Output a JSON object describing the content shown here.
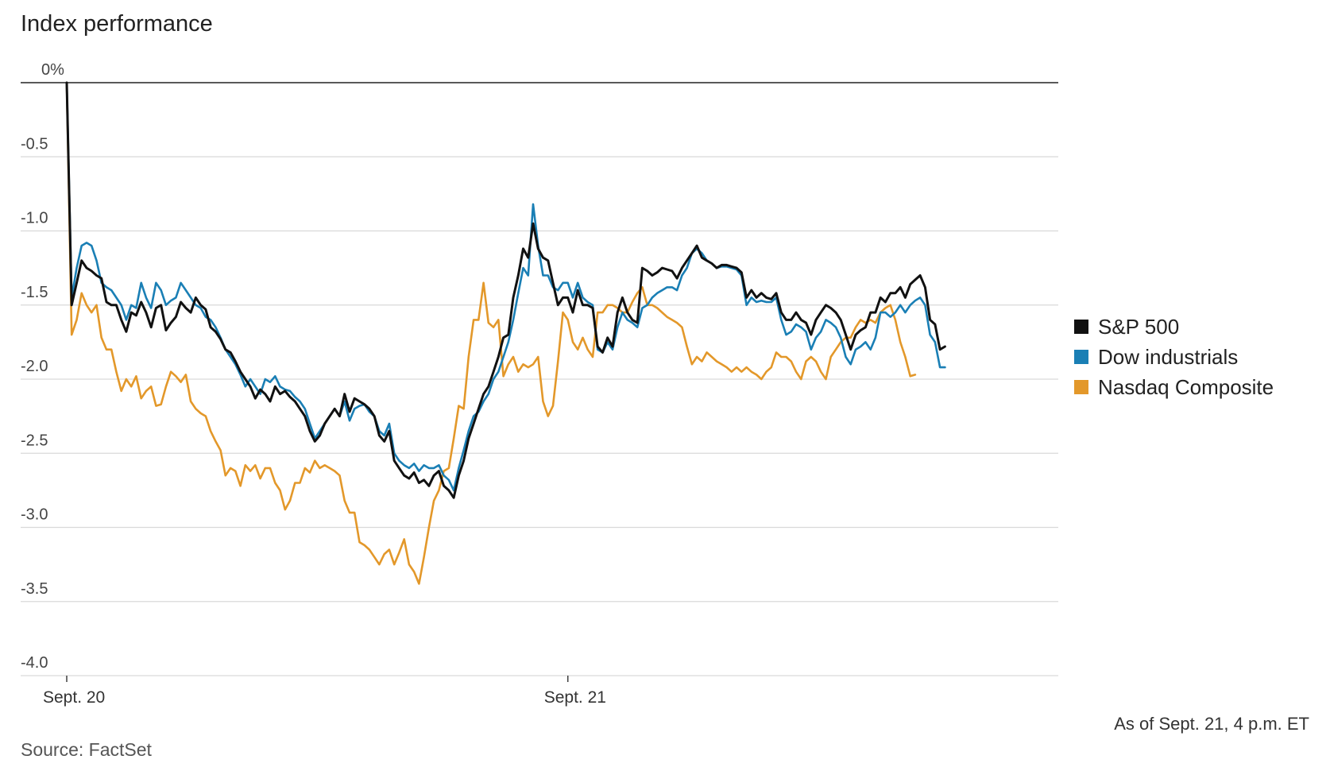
{
  "chart_data": {
    "type": "line",
    "title": "Index performance",
    "yaxis": {
      "ticks": [
        0,
        -0.5,
        -1.0,
        -1.5,
        -2.0,
        -2.5,
        -3.0,
        -3.5,
        -4.0
      ],
      "tick_labels": [
        "0%",
        "-0.5",
        "-1.0",
        "-1.5",
        "-2.0",
        "-2.5",
        "-3.0",
        "-3.5",
        "-4.0"
      ],
      "range": [
        -4.0,
        0
      ]
    },
    "xaxis": {
      "tick_labels": [
        "Sept. 20",
        "Sept. 21"
      ],
      "tick_positions": [
        0,
        101
      ],
      "range": [
        -1,
        200
      ]
    },
    "grid": true,
    "legend_position": "right",
    "series": [
      {
        "name": "S&P 500",
        "color": "#111111",
        "values": [
          0,
          -1.5,
          -1.35,
          -1.2,
          -1.25,
          -1.27,
          -1.3,
          -1.32,
          -1.48,
          -1.5,
          -1.5,
          -1.6,
          -1.68,
          -1.55,
          -1.57,
          -1.48,
          -1.55,
          -1.65,
          -1.52,
          -1.5,
          -1.67,
          -1.62,
          -1.58,
          -1.48,
          -1.52,
          -1.55,
          -1.45,
          -1.5,
          -1.53,
          -1.65,
          -1.68,
          -1.73,
          -1.8,
          -1.82,
          -1.88,
          -1.95,
          -2.0,
          -2.05,
          -2.13,
          -2.07,
          -2.1,
          -2.15,
          -2.05,
          -2.1,
          -2.08,
          -2.12,
          -2.15,
          -2.2,
          -2.25,
          -2.35,
          -2.42,
          -2.38,
          -2.3,
          -2.25,
          -2.2,
          -2.25,
          -2.1,
          -2.22,
          -2.13,
          -2.15,
          -2.17,
          -2.2,
          -2.25,
          -2.38,
          -2.42,
          -2.35,
          -2.55,
          -2.6,
          -2.65,
          -2.67,
          -2.63,
          -2.7,
          -2.68,
          -2.72,
          -2.65,
          -2.62,
          -2.72,
          -2.75,
          -2.8,
          -2.65,
          -2.55,
          -2.4,
          -2.3,
          -2.2,
          -2.1,
          -2.05,
          -1.95,
          -1.85,
          -1.72,
          -1.7,
          -1.45,
          -1.3,
          -1.12,
          -1.18,
          -0.95,
          -1.12,
          -1.18,
          -1.2,
          -1.35,
          -1.5,
          -1.45,
          -1.45,
          -1.55,
          -1.4,
          -1.5,
          -1.5,
          -1.52,
          -1.78,
          -1.82,
          -1.72,
          -1.78,
          -1.55,
          -1.45,
          -1.55,
          -1.6,
          -1.62,
          -1.25,
          -1.27,
          -1.3,
          -1.28,
          -1.25,
          -1.26,
          -1.27,
          -1.32,
          -1.25,
          -1.2,
          -1.15,
          -1.1,
          -1.18,
          -1.2,
          -1.22,
          -1.25,
          -1.23,
          -1.23,
          -1.24,
          -1.25,
          -1.28,
          -1.45,
          -1.4,
          -1.45,
          -1.42,
          -1.45,
          -1.46,
          -1.42,
          -1.55,
          -1.6,
          -1.6,
          -1.55,
          -1.6,
          -1.62,
          -1.7,
          -1.6,
          -1.55,
          -1.5,
          -1.52,
          -1.55,
          -1.6,
          -1.7,
          -1.8,
          -1.7,
          -1.67,
          -1.65,
          -1.55,
          -1.55,
          -1.45,
          -1.48,
          -1.42,
          -1.42,
          -1.38,
          -1.45,
          -1.36,
          -1.33,
          -1.3,
          -1.38,
          -1.6,
          -1.63,
          -1.8,
          -1.78
        ],
        "name_label": "S&P 500"
      },
      {
        "name": "Dow industrials",
        "color": "#1a7fb5",
        "values": [
          0,
          -1.45,
          -1.25,
          -1.1,
          -1.08,
          -1.1,
          -1.2,
          -1.35,
          -1.38,
          -1.4,
          -1.45,
          -1.5,
          -1.6,
          -1.5,
          -1.52,
          -1.35,
          -1.45,
          -1.52,
          -1.35,
          -1.4,
          -1.5,
          -1.47,
          -1.45,
          -1.35,
          -1.4,
          -1.45,
          -1.5,
          -1.52,
          -1.58,
          -1.6,
          -1.65,
          -1.72,
          -1.8,
          -1.85,
          -1.9,
          -1.97,
          -2.05,
          -2.0,
          -2.05,
          -2.1,
          -2.0,
          -2.02,
          -1.98,
          -2.05,
          -2.07,
          -2.08,
          -2.12,
          -2.15,
          -2.2,
          -2.3,
          -2.4,
          -2.35,
          -2.3,
          -2.25,
          -2.2,
          -2.25,
          -2.15,
          -2.28,
          -2.2,
          -2.18,
          -2.17,
          -2.22,
          -2.25,
          -2.35,
          -2.38,
          -2.3,
          -2.5,
          -2.55,
          -2.58,
          -2.6,
          -2.57,
          -2.62,
          -2.58,
          -2.6,
          -2.6,
          -2.58,
          -2.65,
          -2.68,
          -2.75,
          -2.6,
          -2.48,
          -2.35,
          -2.25,
          -2.22,
          -2.15,
          -2.1,
          -2.0,
          -1.95,
          -1.85,
          -1.75,
          -1.6,
          -1.42,
          -1.25,
          -1.3,
          -0.82,
          -1.1,
          -1.3,
          -1.3,
          -1.38,
          -1.4,
          -1.35,
          -1.35,
          -1.45,
          -1.35,
          -1.45,
          -1.48,
          -1.5,
          -1.8,
          -1.82,
          -1.75,
          -1.8,
          -1.65,
          -1.55,
          -1.6,
          -1.62,
          -1.65,
          -1.52,
          -1.5,
          -1.45,
          -1.42,
          -1.4,
          -1.38,
          -1.38,
          -1.4,
          -1.3,
          -1.25,
          -1.15,
          -1.12,
          -1.15,
          -1.2,
          -1.22,
          -1.25,
          -1.24,
          -1.24,
          -1.25,
          -1.26,
          -1.3,
          -1.5,
          -1.45,
          -1.48,
          -1.47,
          -1.48,
          -1.48,
          -1.45,
          -1.6,
          -1.7,
          -1.68,
          -1.63,
          -1.65,
          -1.68,
          -1.8,
          -1.72,
          -1.68,
          -1.6,
          -1.62,
          -1.65,
          -1.72,
          -1.85,
          -1.9,
          -1.8,
          -1.78,
          -1.75,
          -1.8,
          -1.72,
          -1.55,
          -1.55,
          -1.58,
          -1.55,
          -1.5,
          -1.55,
          -1.5,
          -1.47,
          -1.45,
          -1.5,
          -1.7,
          -1.75,
          -1.92,
          -1.92
        ],
        "name_label": "Dow industrials"
      },
      {
        "name": "Nasdaq Composite",
        "color": "#e3982a",
        "values": [
          0,
          -1.7,
          -1.6,
          -1.42,
          -1.5,
          -1.55,
          -1.5,
          -1.72,
          -1.8,
          -1.8,
          -1.95,
          -2.08,
          -2.0,
          -2.05,
          -1.98,
          -2.13,
          -2.08,
          -2.05,
          -2.18,
          -2.17,
          -2.05,
          -1.95,
          -1.98,
          -2.02,
          -1.97,
          -2.15,
          -2.2,
          -2.23,
          -2.25,
          -2.35,
          -2.42,
          -2.48,
          -2.65,
          -2.6,
          -2.62,
          -2.72,
          -2.58,
          -2.62,
          -2.58,
          -2.67,
          -2.6,
          -2.6,
          -2.7,
          -2.75,
          -2.88,
          -2.82,
          -2.7,
          -2.7,
          -2.6,
          -2.63,
          -2.55,
          -2.6,
          -2.58,
          -2.6,
          -2.62,
          -2.65,
          -2.82,
          -2.9,
          -2.9,
          -3.1,
          -3.12,
          -3.15,
          -3.2,
          -3.25,
          -3.18,
          -3.15,
          -3.25,
          -3.17,
          -3.08,
          -3.25,
          -3.3,
          -3.38,
          -3.2,
          -3.0,
          -2.82,
          -2.75,
          -2.62,
          -2.6,
          -2.4,
          -2.18,
          -2.2,
          -1.85,
          -1.6,
          -1.6,
          -1.35,
          -1.62,
          -1.65,
          -1.6,
          -1.98,
          -1.9,
          -1.85,
          -1.95,
          -1.9,
          -1.92,
          -1.9,
          -1.85,
          -2.15,
          -2.25,
          -2.18,
          -1.88,
          -1.55,
          -1.6,
          -1.75,
          -1.8,
          -1.72,
          -1.8,
          -1.85,
          -1.55,
          -1.55,
          -1.5,
          -1.5,
          -1.52,
          -1.55,
          -1.55,
          -1.48,
          -1.42,
          -1.38,
          -1.5,
          -1.5,
          -1.52,
          -1.55,
          -1.58,
          -1.6,
          -1.62,
          -1.65,
          -1.78,
          -1.9,
          -1.85,
          -1.88,
          -1.82,
          -1.85,
          -1.88,
          -1.9,
          -1.92,
          -1.95,
          -1.92,
          -1.95,
          -1.92,
          -1.95,
          -1.97,
          -2.0,
          -1.95,
          -1.92,
          -1.82,
          -1.85,
          -1.85,
          -1.88,
          -1.95,
          -2.0,
          -1.88,
          -1.85,
          -1.88,
          -1.95,
          -2.0,
          -1.85,
          -1.8,
          -1.75,
          -1.72,
          -1.72,
          -1.65,
          -1.6,
          -1.62,
          -1.6,
          -1.62,
          -1.55,
          -1.52,
          -1.5,
          -1.6,
          -1.75,
          -1.85,
          -1.98,
          -1.97
        ],
        "name_label": "Nasdaq Composite"
      }
    ],
    "note": "As of Sept. 21, 4 p.m. ET",
    "source": "Source: FactSet"
  }
}
